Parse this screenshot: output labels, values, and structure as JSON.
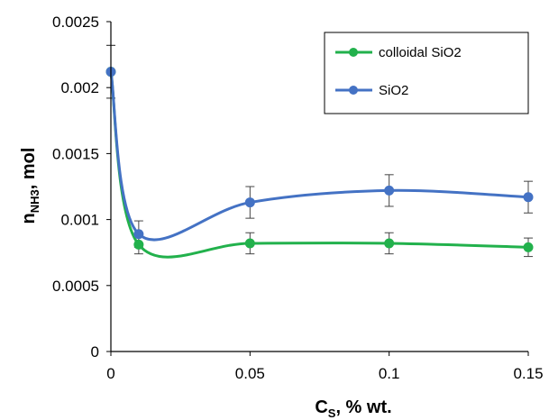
{
  "chart_data": {
    "type": "line",
    "title": "",
    "xlabel": {
      "main": "C",
      "sub": "S",
      "rest": ", % wt."
    },
    "ylabel": {
      "main": "n",
      "sub": "NH3",
      "rest": ", mol"
    },
    "x": [
      0,
      0.01,
      0.05,
      0.1,
      0.15
    ],
    "xlim": [
      0,
      0.15
    ],
    "ylim": [
      0,
      0.0025
    ],
    "xticks": [
      "0",
      "0.05",
      "0.1",
      "0.15"
    ],
    "yticks": [
      "0",
      "0.0005",
      "0.001",
      "0.0015",
      "0.002",
      "0.0025"
    ],
    "grid": false,
    "legend_position": "top-right",
    "series": [
      {
        "name": "colloidal SiO2",
        "color": "#22b14c",
        "values": [
          0.00212,
          0.00081,
          0.00082,
          0.00082,
          0.00079
        ],
        "error": [
          0.0002,
          7e-05,
          8e-05,
          8e-05,
          7e-05
        ]
      },
      {
        "name": "SiO2",
        "color": "#4472c4",
        "values": [
          0.00212,
          0.00089,
          0.00113,
          0.00122,
          0.00117
        ],
        "error": [
          0.0002,
          0.0001,
          0.00012,
          0.00012,
          0.00012
        ]
      }
    ]
  }
}
